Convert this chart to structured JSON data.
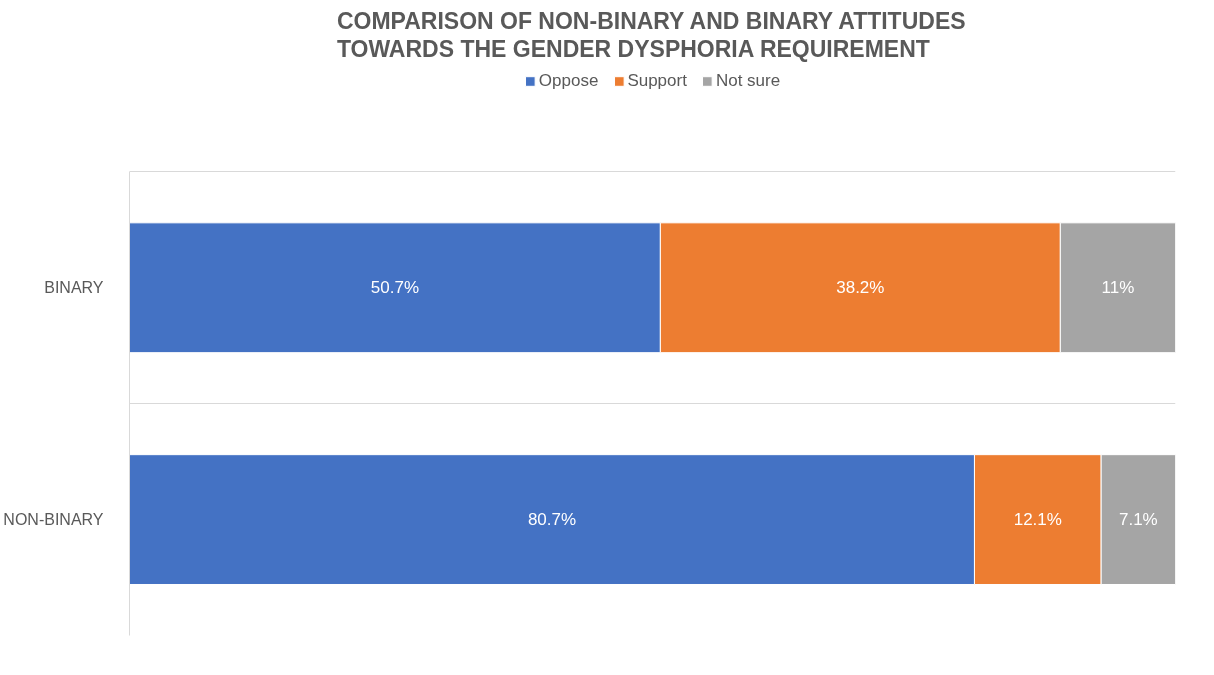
{
  "chart_data": {
    "type": "bar",
    "orientation": "horizontal",
    "stacked": true,
    "title": "COMPARISON OF NON-BINARY AND BINARY ATTITUDES TOWARDS THE GENDER DYSPHORIA REQUIREMENT",
    "categories": [
      "BINARY",
      "NON-BINARY"
    ],
    "series": [
      {
        "name": "Oppose",
        "color": "#4472c4",
        "values": [
          50.7,
          80.7
        ],
        "value_labels": [
          "50.7%",
          "80.7%"
        ]
      },
      {
        "name": "Support",
        "color": "#ed7d31",
        "values": [
          38.2,
          12.1
        ],
        "value_labels": [
          "38.2%",
          "12.1%"
        ]
      },
      {
        "name": "Not sure",
        "color": "#a5a5a5",
        "values": [
          11,
          7.1
        ],
        "value_labels": [
          "11%",
          "7.1%"
        ]
      }
    ],
    "tick_labels": "y",
    "grid": "y",
    "legend": "top"
  }
}
